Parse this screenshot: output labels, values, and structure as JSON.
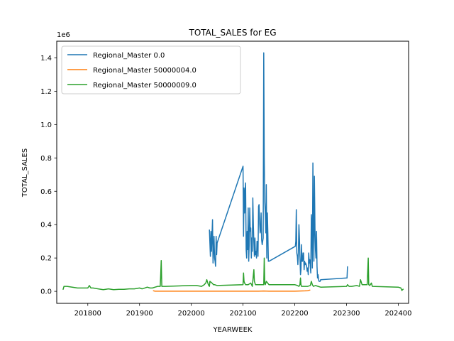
{
  "chart_data": {
    "type": "line",
    "title": "TOTAL_SALES for EG",
    "xlabel": "YEARWEEK",
    "ylabel": "TOTAL_SALES",
    "y_scale_label": "1e6",
    "xlim": [
      201740,
      202420
    ],
    "ylim": [
      -0.072,
      1.5
    ],
    "x_ticks": [
      201800,
      201900,
      202000,
      202100,
      202200,
      202300,
      202400
    ],
    "x_tick_labels": [
      "201800",
      "201900",
      "202000",
      "202100",
      "202200",
      "202300",
      "202400"
    ],
    "y_ticks": [
      0.0,
      0.2,
      0.4,
      0.6,
      0.8,
      1.0,
      1.2,
      1.4
    ],
    "y_tick_labels": [
      "0.0",
      "0.2",
      "0.4",
      "0.6",
      "0.8",
      "1.0",
      "1.2",
      "1.4"
    ],
    "grid": false,
    "legend_position": "top-left",
    "series": [
      {
        "name": "Regional_Master 0.0",
        "color": "#1f77b4",
        "x": [
          202035,
          202037,
          202038,
          202039,
          202041,
          202042,
          202044,
          202045,
          202046,
          202047,
          202048,
          202049,
          202050,
          202100,
          202101,
          202102,
          202103,
          202104,
          202105,
          202106,
          202107,
          202108,
          202109,
          202110,
          202111,
          202112,
          202113,
          202114,
          202115,
          202116,
          202117,
          202118,
          202119,
          202120,
          202121,
          202122,
          202123,
          202124,
          202125,
          202126,
          202127,
          202128,
          202129,
          202130,
          202131,
          202132,
          202133,
          202134,
          202135,
          202136,
          202137,
          202138,
          202139,
          202140,
          202141,
          202142,
          202143,
          202144,
          202145,
          202146,
          202147,
          202148,
          202149,
          202150,
          202201,
          202202,
          202203,
          202204,
          202205,
          202206,
          202207,
          202208,
          202209,
          202210,
          202211,
          202212,
          202213,
          202214,
          202215,
          202216,
          202217,
          202218,
          202219,
          202220,
          202221,
          202222,
          202223,
          202224,
          202225,
          202226,
          202227,
          202228,
          202229,
          202230,
          202231,
          202232,
          202233,
          202234,
          202235,
          202236,
          202237,
          202238,
          202239,
          202240,
          202241,
          202242,
          202243,
          202244,
          202245,
          202246,
          202247,
          202248,
          202249,
          202250,
          202301,
          202302
        ],
        "values": [
          0.37,
          0.21,
          0.36,
          0.24,
          0.43,
          0.17,
          0.33,
          0.2,
          0.18,
          0.15,
          0.33,
          0.22,
          0.29,
          0.75,
          0.33,
          0.62,
          0.47,
          0.6,
          0.65,
          0.25,
          0.2,
          0.36,
          0.25,
          0.5,
          0.18,
          0.28,
          0.5,
          0.36,
          0.38,
          0.2,
          0.32,
          0.24,
          0.56,
          0.39,
          0.29,
          0.21,
          0.32,
          0.22,
          0.24,
          0.2,
          0.3,
          0.3,
          0.21,
          0.51,
          0.52,
          0.42,
          0.35,
          0.37,
          0.47,
          0.31,
          0.28,
          0.3,
          0.32,
          1.43,
          0.8,
          0.54,
          0.46,
          0.35,
          0.64,
          0.2,
          0.47,
          0.35,
          0.18,
          0.18,
          0.27,
          0.3,
          0.49,
          0.23,
          0.21,
          0.16,
          0.23,
          0.4,
          0.32,
          0.21,
          0.1,
          0.13,
          0.28,
          0.18,
          0.18,
          0.23,
          0.23,
          0.13,
          0.18,
          0.16,
          0.17,
          0.16,
          0.15,
          0.12,
          0.14,
          0.1,
          0.23,
          0.17,
          0.19,
          0.15,
          0.11,
          0.46,
          0.4,
          0.14,
          0.77,
          0.42,
          0.18,
          0.69,
          0.38,
          0.25,
          0.2,
          0.36,
          0.15,
          0.08,
          0.1,
          0.07,
          0.06,
          0.06,
          0.06,
          0.07,
          0.08,
          0.15
        ]
      },
      {
        "name": "Regional_Master 50000004.0",
        "color": "#ff7f0e",
        "x": [
          201926,
          201930,
          201940,
          201950,
          202000,
          202010,
          202020,
          202030,
          202040,
          202050,
          202100,
          202110,
          202120,
          202130,
          202140,
          202150,
          202200,
          202210,
          202220,
          202225,
          202230
        ],
        "values": [
          0.004,
          0.001,
          0.001,
          0.001,
          0.001,
          0.001,
          0.001,
          0.001,
          0.001,
          0.001,
          0.001,
          0.001,
          0.001,
          0.001,
          0.002,
          0.001,
          0.001,
          0.002,
          0.003,
          0.004,
          0.008
        ]
      },
      {
        "name": "Regional_Master 50000009.0",
        "color": "#2ca02c",
        "x": [
          201752,
          201754,
          201760,
          201770,
          201780,
          201800,
          201803,
          201806,
          201810,
          201820,
          201830,
          201840,
          201850,
          201860,
          201870,
          201880,
          201890,
          201900,
          201905,
          201910,
          201915,
          201920,
          201925,
          201930,
          201935,
          201940,
          201942,
          201943,
          201944,
          201950,
          202000,
          202010,
          202020,
          202025,
          202028,
          202030,
          202033,
          202035,
          202036,
          202040,
          202043,
          202045,
          202050,
          202100,
          202101,
          202102,
          202103,
          202105,
          202110,
          202115,
          202118,
          202120,
          202121,
          202122,
          202124,
          202130,
          202140,
          202141,
          202142,
          202143,
          202145,
          202150,
          202200,
          202205,
          202208,
          202210,
          202211,
          202212,
          202213,
          202220,
          202225,
          202230,
          202232,
          202234,
          202236,
          202240,
          202245,
          202250,
          202300,
          202302,
          202305,
          202310,
          202320,
          202325,
          202327,
          202330,
          202335,
          202340,
          202342,
          202343,
          202345,
          202348,
          202350,
          202400,
          202405,
          202407,
          202410
        ],
        "values": [
          0.01,
          0.03,
          0.03,
          0.025,
          0.02,
          0.02,
          0.035,
          0.02,
          0.02,
          0.015,
          0.01,
          0.015,
          0.01,
          0.012,
          0.012,
          0.015,
          0.015,
          0.02,
          0.015,
          0.02,
          0.025,
          0.02,
          0.02,
          0.025,
          0.03,
          0.03,
          0.185,
          0.03,
          0.03,
          0.03,
          0.035,
          0.035,
          0.03,
          0.04,
          0.05,
          0.07,
          0.04,
          0.03,
          0.06,
          0.05,
          0.04,
          0.04,
          0.035,
          0.04,
          0.11,
          0.06,
          0.05,
          0.04,
          0.04,
          0.05,
          0.03,
          0.1,
          0.13,
          0.06,
          0.04,
          0.04,
          0.04,
          0.2,
          0.05,
          0.04,
          0.06,
          0.04,
          0.04,
          0.035,
          0.03,
          0.04,
          0.08,
          0.04,
          0.03,
          0.03,
          0.03,
          0.035,
          0.06,
          0.04,
          0.03,
          0.035,
          0.03,
          0.025,
          0.03,
          0.04,
          0.03,
          0.03,
          0.035,
          0.03,
          0.07,
          0.04,
          0.04,
          0.04,
          0.2,
          0.04,
          0.035,
          0.05,
          0.03,
          0.025,
          0.02,
          0.005,
          0.015
        ]
      }
    ]
  }
}
